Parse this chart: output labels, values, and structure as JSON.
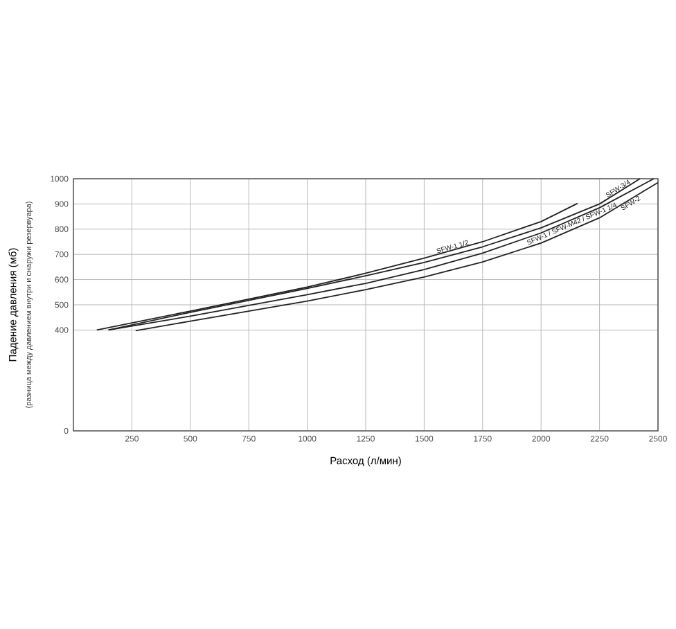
{
  "chart_data": {
    "type": "line",
    "xlabel": "Расход (л/мин)",
    "ylabel": "Падение давления (мб)",
    "annotations": [
      "(разница между давлением внутри и снаружи резервуара)"
    ],
    "xlim": [
      0,
      2500
    ],
    "xticks": [
      250,
      500,
      750,
      1000,
      1250,
      1500,
      1750,
      2000,
      2250,
      2500
    ],
    "ylim": [
      0,
      1000
    ],
    "yticks": [
      0,
      400,
      500,
      600,
      700,
      800,
      900,
      1000
    ],
    "grid": true,
    "legend": false,
    "marker": "none",
    "line_style": "solid",
    "series": [
      {
        "name": "SFW-1 1/2",
        "color": "#222222",
        "x": [
          100,
          500,
          1000,
          1250,
          1500,
          1750,
          2000,
          2156
        ],
        "values": [
          400,
          475,
          570,
          625,
          685,
          750,
          830,
          902
        ]
      },
      {
        "name": "SFW-3/4",
        "color": "#222222",
        "x": [
          150,
          500,
          1000,
          1250,
          1500,
          1750,
          2000,
          2250,
          2423
        ],
        "values": [
          400,
          470,
          565,
          615,
          668,
          730,
          805,
          900,
          1000
        ]
      },
      {
        "name": "SFW-1 / SFW-M42 / SFW-1 1/4",
        "color": "#222222",
        "x": [
          150,
          500,
          1000,
          1250,
          1500,
          1750,
          2000,
          2250,
          2482
        ],
        "values": [
          400,
          455,
          540,
          585,
          640,
          705,
          785,
          885,
          1000
        ]
      },
      {
        "name": "SFW-2",
        "color": "#222222",
        "x": [
          266,
          500,
          1000,
          1250,
          1500,
          1750,
          2000,
          2250,
          2500
        ],
        "values": [
          397,
          435,
          515,
          560,
          610,
          670,
          745,
          845,
          985
        ]
      }
    ]
  }
}
